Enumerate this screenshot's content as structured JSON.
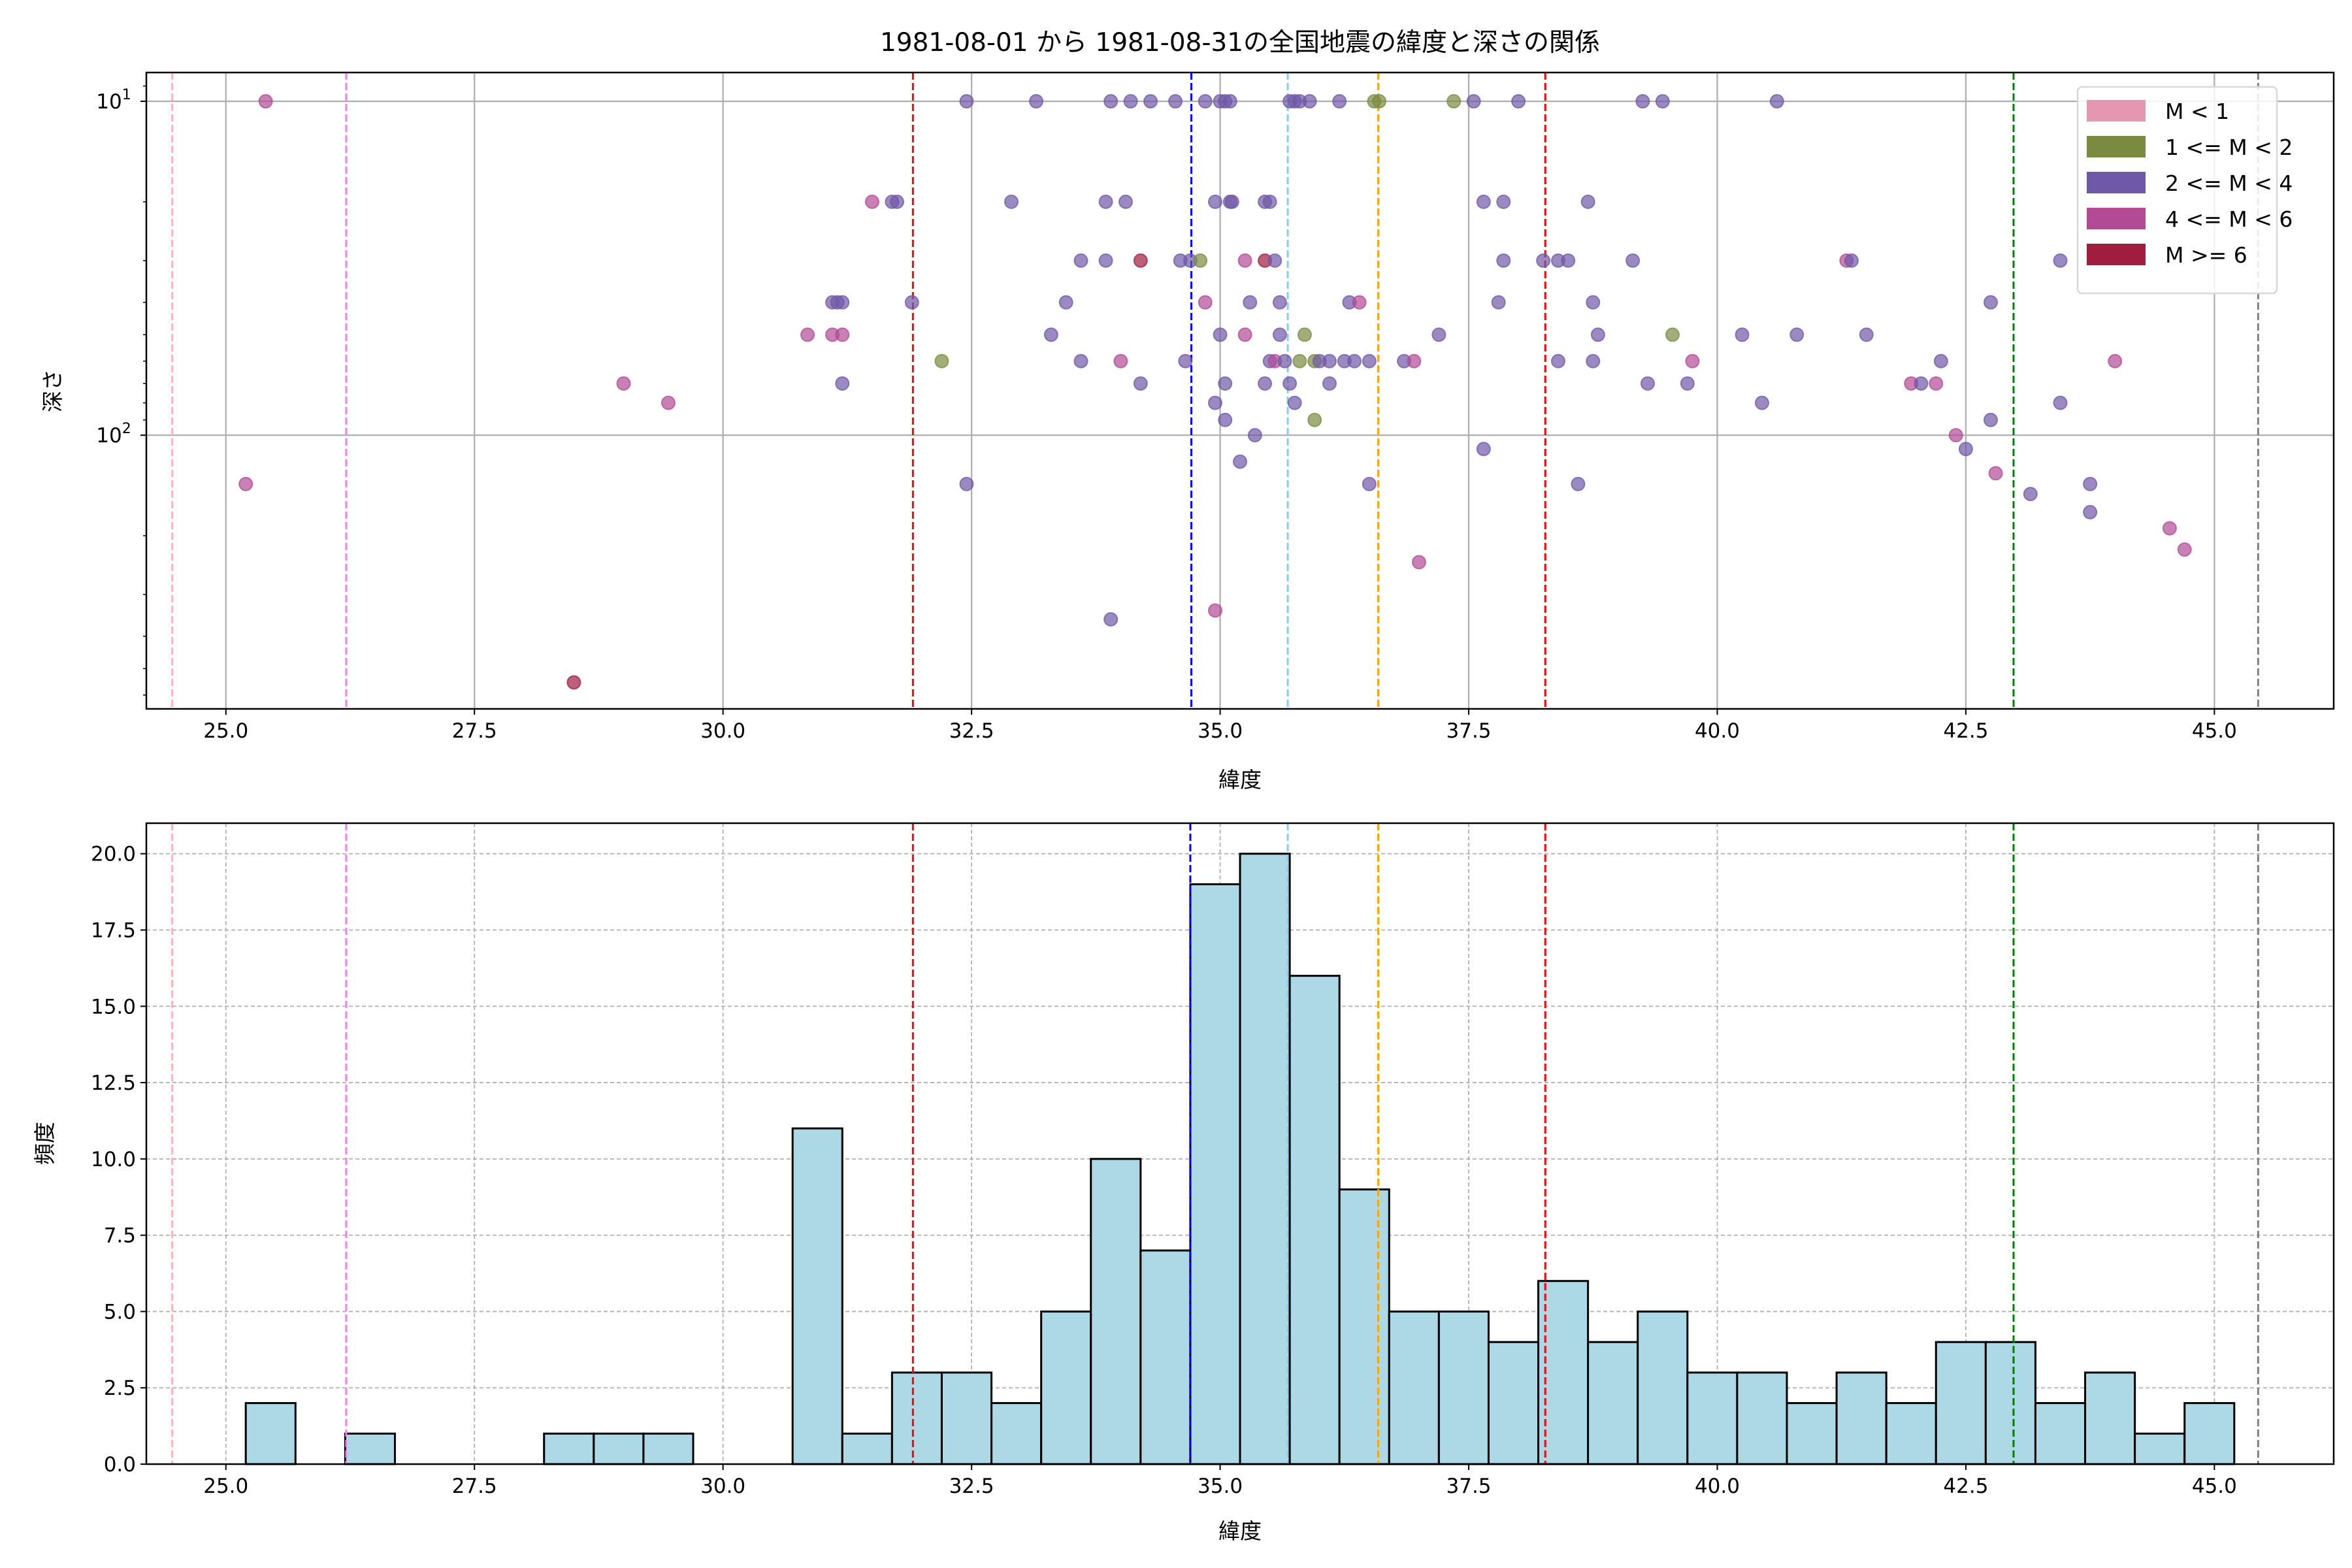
{
  "chart_data": [
    {
      "type": "scatter",
      "title": "1981-08-01 から 1981-08-31の全国地震の緯度と深さの関係",
      "xlabel": "緯度",
      "ylabel": "深さ",
      "xlim": [
        24.2,
        46.2
      ],
      "ylim": [
        660,
        8.2
      ],
      "yscale": "log",
      "yinverted": true,
      "grid": true,
      "xticks": [
        25.0,
        27.5,
        30.0,
        32.5,
        35.0,
        37.5,
        40.0,
        42.5,
        45.0
      ],
      "xtick_labels": [
        "25.0",
        "27.5",
        "30.0",
        "32.5",
        "35.0",
        "37.5",
        "40.0",
        "42.5",
        "45.0"
      ],
      "yticks": [
        10,
        100
      ],
      "ytick_labels": [
        {
          "base": "10",
          "exp": "1"
        },
        {
          "base": "10",
          "exp": "2"
        }
      ],
      "legend_placement": "upper right",
      "legend": [
        {
          "label": "M < 1",
          "color": "#e597b2"
        },
        {
          "label": "1 <= M < 2",
          "color": "#7a8b41"
        },
        {
          "label": "2 <= M < 4",
          "color": "#6f58a6"
        },
        {
          "label": "4 <= M < 6",
          "color": "#b24a96"
        },
        {
          "label": "M >= 6",
          "color": "#a01d40"
        }
      ],
      "reference_lines": [
        {
          "x": 24.46,
          "color": "#ffb6c1"
        },
        {
          "x": 26.21,
          "color": "#ee82ee"
        },
        {
          "x": 31.91,
          "color": "#b22222"
        },
        {
          "x": 34.71,
          "color": "#0000ff"
        },
        {
          "x": 35.68,
          "color": "#87ceeb"
        },
        {
          "x": 36.59,
          "color": "#ffa500"
        },
        {
          "x": 38.27,
          "color": "#ff0000"
        },
        {
          "x": 42.98,
          "color": "#008000"
        },
        {
          "x": 45.44,
          "color": "#808080"
        }
      ],
      "points_format": [
        "latitude",
        "depth",
        "magnitude_class_index"
      ],
      "points": [
        [
          25.4,
          10,
          3
        ],
        [
          32.45,
          10,
          2
        ],
        [
          33.15,
          10,
          2
        ],
        [
          33.9,
          10,
          2
        ],
        [
          34.1,
          10,
          2
        ],
        [
          34.3,
          10,
          2
        ],
        [
          34.55,
          10,
          2
        ],
        [
          34.85,
          10,
          2
        ],
        [
          35.0,
          10,
          2
        ],
        [
          35.05,
          10,
          2
        ],
        [
          35.1,
          10,
          2
        ],
        [
          35.7,
          10,
          2
        ],
        [
          35.75,
          10,
          2
        ],
        [
          35.8,
          10,
          2
        ],
        [
          35.9,
          10,
          2
        ],
        [
          36.2,
          10,
          2
        ],
        [
          36.55,
          10,
          1
        ],
        [
          36.6,
          10,
          1
        ],
        [
          37.35,
          10,
          1
        ],
        [
          37.55,
          10,
          2
        ],
        [
          38.0,
          10,
          2
        ],
        [
          39.25,
          10,
          2
        ],
        [
          39.45,
          10,
          2
        ],
        [
          40.6,
          10,
          2
        ],
        [
          31.5,
          20,
          3
        ],
        [
          31.7,
          20,
          2
        ],
        [
          31.75,
          20,
          2
        ],
        [
          32.9,
          20,
          2
        ],
        [
          33.85,
          20,
          2
        ],
        [
          34.05,
          20,
          2
        ],
        [
          34.95,
          20,
          2
        ],
        [
          35.1,
          20,
          2
        ],
        [
          35.12,
          20,
          2
        ],
        [
          35.45,
          20,
          2
        ],
        [
          35.5,
          20,
          2
        ],
        [
          37.65,
          20,
          2
        ],
        [
          37.85,
          20,
          2
        ],
        [
          38.7,
          20,
          2
        ],
        [
          33.6,
          30,
          2
        ],
        [
          33.85,
          30,
          2
        ],
        [
          34.2,
          30,
          4
        ],
        [
          34.6,
          30,
          2
        ],
        [
          34.7,
          30,
          2
        ],
        [
          34.8,
          30,
          1
        ],
        [
          35.25,
          30,
          3
        ],
        [
          35.45,
          30,
          4
        ],
        [
          35.55,
          30,
          2
        ],
        [
          37.85,
          30,
          2
        ],
        [
          38.25,
          30,
          2
        ],
        [
          38.4,
          30,
          2
        ],
        [
          38.5,
          30,
          2
        ],
        [
          39.15,
          30,
          2
        ],
        [
          41.3,
          30,
          3
        ],
        [
          41.35,
          30,
          2
        ],
        [
          43.45,
          30,
          2
        ],
        [
          31.1,
          40,
          2
        ],
        [
          31.15,
          40,
          2
        ],
        [
          31.2,
          40,
          2
        ],
        [
          31.9,
          40,
          2
        ],
        [
          33.45,
          40,
          2
        ],
        [
          34.85,
          40,
          3
        ],
        [
          35.3,
          40,
          2
        ],
        [
          35.6,
          40,
          2
        ],
        [
          36.3,
          40,
          2
        ],
        [
          36.4,
          40,
          3
        ],
        [
          37.8,
          40,
          2
        ],
        [
          38.75,
          40,
          2
        ],
        [
          42.75,
          40,
          2
        ],
        [
          30.85,
          50,
          3
        ],
        [
          31.1,
          50,
          3
        ],
        [
          31.2,
          50,
          3
        ],
        [
          33.3,
          50,
          2
        ],
        [
          35.0,
          50,
          2
        ],
        [
          35.25,
          50,
          3
        ],
        [
          35.6,
          50,
          2
        ],
        [
          35.85,
          50,
          1
        ],
        [
          37.2,
          50,
          2
        ],
        [
          38.8,
          50,
          2
        ],
        [
          39.55,
          50,
          1
        ],
        [
          40.25,
          50,
          2
        ],
        [
          40.8,
          50,
          2
        ],
        [
          41.5,
          50,
          2
        ],
        [
          32.2,
          60,
          1
        ],
        [
          33.6,
          60,
          2
        ],
        [
          34.0,
          60,
          3
        ],
        [
          34.65,
          60,
          2
        ],
        [
          35.5,
          60,
          2
        ],
        [
          35.55,
          60,
          3
        ],
        [
          35.65,
          60,
          2
        ],
        [
          35.8,
          60,
          1
        ],
        [
          35.95,
          60,
          1
        ],
        [
          36.0,
          60,
          2
        ],
        [
          36.1,
          60,
          2
        ],
        [
          36.25,
          60,
          2
        ],
        [
          36.35,
          60,
          2
        ],
        [
          36.5,
          60,
          2
        ],
        [
          36.85,
          60,
          2
        ],
        [
          36.95,
          60,
          3
        ],
        [
          38.4,
          60,
          2
        ],
        [
          38.75,
          60,
          2
        ],
        [
          39.75,
          60,
          3
        ],
        [
          42.25,
          60,
          2
        ],
        [
          44.0,
          60,
          3
        ],
        [
          29.0,
          70,
          3
        ],
        [
          31.2,
          70,
          2
        ],
        [
          34.2,
          70,
          2
        ],
        [
          35.05,
          70,
          2
        ],
        [
          35.45,
          70,
          2
        ],
        [
          35.7,
          70,
          2
        ],
        [
          36.1,
          70,
          2
        ],
        [
          39.3,
          70,
          2
        ],
        [
          39.7,
          70,
          2
        ],
        [
          41.95,
          70,
          3
        ],
        [
          42.05,
          70,
          2
        ],
        [
          42.2,
          70,
          3
        ],
        [
          29.45,
          80,
          3
        ],
        [
          34.95,
          80,
          2
        ],
        [
          35.75,
          80,
          2
        ],
        [
          40.45,
          80,
          2
        ],
        [
          43.45,
          80,
          2
        ],
        [
          35.05,
          90,
          2
        ],
        [
          35.95,
          90,
          1
        ],
        [
          42.75,
          90,
          2
        ],
        [
          35.35,
          100,
          2
        ],
        [
          42.4,
          100,
          3
        ],
        [
          37.65,
          110,
          2
        ],
        [
          42.5,
          110,
          2
        ],
        [
          35.2,
          120,
          2
        ],
        [
          42.8,
          130,
          3
        ],
        [
          25.2,
          140,
          3
        ],
        [
          32.45,
          140,
          2
        ],
        [
          36.5,
          140,
          2
        ],
        [
          38.6,
          140,
          2
        ],
        [
          43.75,
          140,
          2
        ],
        [
          43.15,
          150,
          2
        ],
        [
          43.75,
          170,
          2
        ],
        [
          44.55,
          190,
          3
        ],
        [
          44.7,
          220,
          3
        ],
        [
          37.0,
          240,
          3
        ],
        [
          34.95,
          335,
          3
        ],
        [
          33.9,
          356,
          2
        ],
        [
          28.5,
          550,
          4
        ]
      ]
    },
    {
      "type": "bar",
      "subtype": "histogram",
      "xlabel": "緯度",
      "ylabel": "頻度",
      "xlim": [
        24.2,
        46.2
      ],
      "ylim": [
        0,
        21
      ],
      "grid": true,
      "bar_color": "#add8e6",
      "edge_color": "#000000",
      "bin_start": 25.2,
      "bin_width": 0.5,
      "counts": [
        2,
        0,
        1,
        0,
        0,
        0,
        1,
        1,
        1,
        0,
        0,
        11,
        1,
        3,
        3,
        2,
        5,
        10,
        7,
        19,
        20,
        16,
        9,
        5,
        5,
        4,
        6,
        4,
        5,
        3,
        3,
        2,
        3,
        2,
        4,
        4,
        2,
        3,
        1,
        2
      ],
      "xticks": [
        25.0,
        27.5,
        30.0,
        32.5,
        35.0,
        37.5,
        40.0,
        42.5,
        45.0
      ],
      "xtick_labels": [
        "25.0",
        "27.5",
        "30.0",
        "32.5",
        "35.0",
        "37.5",
        "40.0",
        "42.5",
        "45.0"
      ],
      "yticks": [
        0,
        2.5,
        5,
        7.5,
        10,
        12.5,
        15,
        17.5,
        20
      ],
      "ytick_labels": [
        "0.0",
        "2.5",
        "5.0",
        "7.5",
        "10.0",
        "12.5",
        "15.0",
        "17.5",
        "20.0"
      ],
      "reference_lines": [
        {
          "x": 24.46,
          "color": "#ffb6c1"
        },
        {
          "x": 26.21,
          "color": "#ee82ee"
        },
        {
          "x": 31.91,
          "color": "#b22222"
        },
        {
          "x": 34.7,
          "color": "#0000ff"
        },
        {
          "x": 35.68,
          "color": "#87ceeb"
        },
        {
          "x": 36.59,
          "color": "#ffa500"
        },
        {
          "x": 38.27,
          "color": "#ff0000"
        },
        {
          "x": 42.98,
          "color": "#008000"
        },
        {
          "x": 45.44,
          "color": "#808080"
        }
      ]
    }
  ]
}
